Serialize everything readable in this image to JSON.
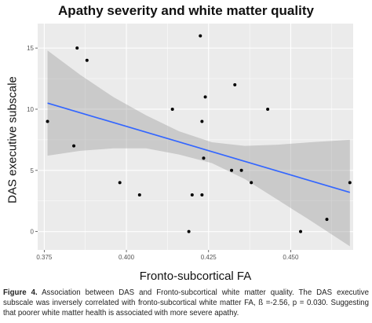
{
  "figure": {
    "caption_label": "Figure 4.",
    "caption_text": " Association between DAS and Fronto-subcortical white matter quality. The DAS executive subscale was inversely correlated with fronto-subcortical white matter FA, ß =-2.56, p = 0.030. Suggesting that poorer white matter health is associated with more severe apathy."
  },
  "chart_data": {
    "type": "scatter",
    "title": "Apathy severity and white matter quality",
    "xlabel": "Fronto-subcortical FA",
    "ylabel": "DAS executive subscale",
    "xlim": [
      0.373,
      0.469
    ],
    "ylim": [
      -1.5,
      17
    ],
    "xticks": [
      0.375,
      0.4,
      0.425,
      0.45
    ],
    "xtick_labels": [
      "0.375",
      "0.400",
      "0.425",
      "0.450"
    ],
    "yticks": [
      0,
      5,
      10,
      15
    ],
    "ytick_labels": [
      "0",
      "5",
      "10",
      "15"
    ],
    "grid": true,
    "background_color": "#ebebeb",
    "grid_color": "#ffffff",
    "point_color": "#000000",
    "line_color": "#3366ff",
    "band_color": "#999999",
    "points": [
      {
        "x": 0.376,
        "y": 9
      },
      {
        "x": 0.384,
        "y": 7
      },
      {
        "x": 0.385,
        "y": 15
      },
      {
        "x": 0.388,
        "y": 14
      },
      {
        "x": 0.398,
        "y": 4
      },
      {
        "x": 0.404,
        "y": 3
      },
      {
        "x": 0.414,
        "y": 10
      },
      {
        "x": 0.419,
        "y": 0
      },
      {
        "x": 0.42,
        "y": 3
      },
      {
        "x": 0.4225,
        "y": 16
      },
      {
        "x": 0.423,
        "y": 9
      },
      {
        "x": 0.423,
        "y": 3
      },
      {
        "x": 0.4235,
        "y": 6
      },
      {
        "x": 0.424,
        "y": 11
      },
      {
        "x": 0.432,
        "y": 5
      },
      {
        "x": 0.433,
        "y": 12
      },
      {
        "x": 0.435,
        "y": 5
      },
      {
        "x": 0.438,
        "y": 4
      },
      {
        "x": 0.443,
        "y": 10
      },
      {
        "x": 0.453,
        "y": 0
      },
      {
        "x": 0.461,
        "y": 1
      },
      {
        "x": 0.468,
        "y": 4
      }
    ],
    "fit_line": {
      "x": [
        0.376,
        0.468
      ],
      "y": [
        10.5,
        3.2
      ]
    },
    "confidence_band": {
      "x": [
        0.376,
        0.386,
        0.396,
        0.406,
        0.416,
        0.426,
        0.436,
        0.446,
        0.456,
        0.468
      ],
      "upper": [
        14.8,
        12.8,
        11.0,
        9.5,
        8.2,
        7.3,
        7.0,
        7.1,
        7.3,
        7.5
      ],
      "lower": [
        6.2,
        6.6,
        6.8,
        6.8,
        6.3,
        5.6,
        4.3,
        2.6,
        0.9,
        -1.2
      ]
    }
  }
}
